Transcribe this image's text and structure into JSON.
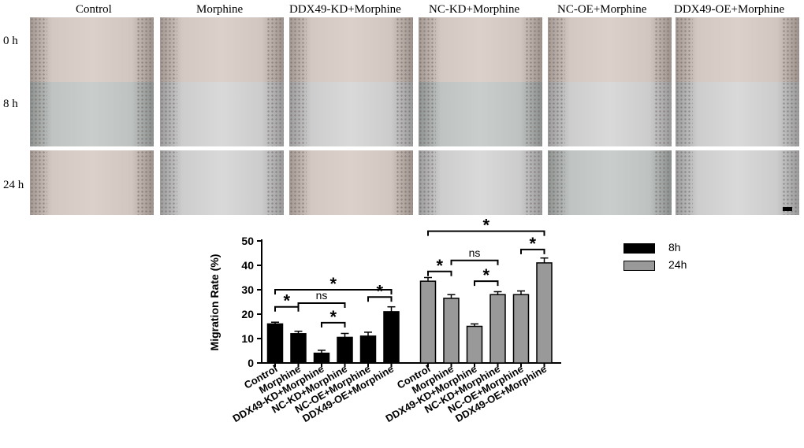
{
  "image_grid": {
    "columns": [
      "Control",
      "Morphine",
      "DDX49-KD+Morphine",
      "NC-KD+Morphine",
      "NC-OE+Morphine",
      "DDX49-OE+Morphine"
    ],
    "rows": [
      "0 h",
      "8 h",
      "24 h"
    ]
  },
  "chart_data": {
    "type": "bar",
    "ylabel": "Migration Rate (%)",
    "xlabel": "",
    "ylim": [
      0,
      50
    ],
    "yticks": [
      0,
      10,
      20,
      30,
      40,
      50
    ],
    "categories": [
      "Control",
      "Morphine",
      "DDX49-KD+Morphine",
      "NC-KD+Morphine",
      "NC-OE+Morphine",
      "DDX49-OE+Morphine"
    ],
    "series": [
      {
        "name": "8h",
        "color": "#000000",
        "values": [
          16,
          12,
          4,
          10.5,
          11,
          21
        ],
        "errors": [
          0.7,
          1.0,
          1.2,
          1.6,
          1.6,
          2.0
        ]
      },
      {
        "name": "24h",
        "color": "#999999",
        "values": [
          33.5,
          26.5,
          15,
          28,
          28,
          41
        ],
        "errors": [
          1.5,
          1.5,
          1.0,
          1.2,
          1.5,
          2.0
        ]
      }
    ],
    "legend_position": "right",
    "significance": [
      {
        "series": "8h",
        "from": 0,
        "to": 5,
        "label": "*"
      },
      {
        "series": "8h",
        "from": 0,
        "to": 1,
        "label": "*"
      },
      {
        "series": "8h",
        "from": 1,
        "to": 3,
        "label": "ns"
      },
      {
        "series": "8h",
        "from": 2,
        "to": 3,
        "label": "*"
      },
      {
        "series": "8h",
        "from": 4,
        "to": 5,
        "label": "*"
      },
      {
        "series": "24h",
        "from": 0,
        "to": 5,
        "label": "*"
      },
      {
        "series": "24h",
        "from": 0,
        "to": 1,
        "label": "*"
      },
      {
        "series": "24h",
        "from": 1,
        "to": 3,
        "label": "ns"
      },
      {
        "series": "24h",
        "from": 2,
        "to": 3,
        "label": "*"
      },
      {
        "series": "24h",
        "from": 4,
        "to": 5,
        "label": "*"
      }
    ]
  }
}
